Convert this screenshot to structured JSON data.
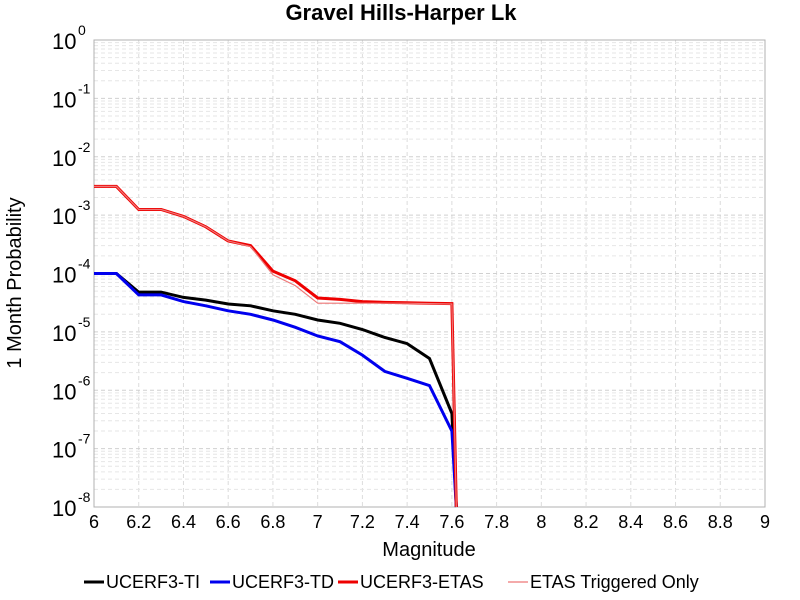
{
  "chart_data": {
    "type": "line",
    "title": "Gravel Hills-Harper Lk",
    "xlabel": "Magnitude",
    "ylabel": "1 Month Probability",
    "xlim": [
      6,
      9
    ],
    "ylim": [
      1e-08,
      1
    ],
    "yscale": "log",
    "grid": true,
    "legend_position": "bottom",
    "x_ticks": [
      "6",
      "6.2",
      "6.4",
      "6.6",
      "6.8",
      "7",
      "7.2",
      "7.4",
      "7.6",
      "7.8",
      "8",
      "8.2",
      "8.4",
      "8.6",
      "8.8",
      "9"
    ],
    "y_ticks": [
      {
        "base": "10",
        "exp": "0"
      },
      {
        "base": "10",
        "exp": "-1"
      },
      {
        "base": "10",
        "exp": "-2"
      },
      {
        "base": "10",
        "exp": "-3"
      },
      {
        "base": "10",
        "exp": "-4"
      },
      {
        "base": "10",
        "exp": "-5"
      },
      {
        "base": "10",
        "exp": "-6"
      },
      {
        "base": "10",
        "exp": "-7"
      },
      {
        "base": "10",
        "exp": "-8"
      }
    ],
    "series": [
      {
        "name": "UCERF3-TI",
        "color": "#000000",
        "width": 3,
        "x": [
          6.0,
          6.1,
          6.2,
          6.3,
          6.4,
          6.5,
          6.6,
          6.7,
          6.8,
          6.9,
          7.0,
          7.1,
          7.2,
          7.3,
          7.4,
          7.5,
          7.6,
          7.62
        ],
        "y": [
          0.0001,
          0.0001,
          4.8e-05,
          4.8e-05,
          3.9e-05,
          3.5e-05,
          3e-05,
          2.8e-05,
          2.3e-05,
          2e-05,
          1.6e-05,
          1.4e-05,
          1.1e-05,
          8e-06,
          6.3e-06,
          3.5e-06,
          4e-07,
          1e-08
        ]
      },
      {
        "name": "UCERF3-TD",
        "color": "#0000ee",
        "width": 3,
        "x": [
          6.0,
          6.1,
          6.2,
          6.3,
          6.4,
          6.5,
          6.6,
          6.7,
          6.8,
          6.9,
          7.0,
          7.1,
          7.2,
          7.3,
          7.4,
          7.5,
          7.6,
          7.62
        ],
        "y": [
          0.0001,
          0.0001,
          4.3e-05,
          4.3e-05,
          3.3e-05,
          2.8e-05,
          2.3e-05,
          2e-05,
          1.6e-05,
          1.2e-05,
          8.5e-06,
          6.8e-06,
          4e-06,
          2.1e-06,
          1.6e-06,
          1.2e-06,
          2e-07,
          1e-08
        ]
      },
      {
        "name": "UCERF3-ETAS",
        "color": "#ee0000",
        "width": 3,
        "x": [
          6.0,
          6.1,
          6.2,
          6.3,
          6.4,
          6.5,
          6.6,
          6.7,
          6.8,
          6.9,
          7.0,
          7.1,
          7.2,
          7.3,
          7.4,
          7.5,
          7.6,
          7.62
        ],
        "y": [
          0.0031,
          0.0031,
          0.00125,
          0.00125,
          0.00095,
          0.00063,
          0.00036,
          0.0003,
          0.00011,
          7.5e-05,
          3.8e-05,
          3.6e-05,
          3.3e-05,
          3.2e-05,
          3.15e-05,
          3.1e-05,
          3.05e-05,
          1e-08
        ]
      },
      {
        "name": "ETAS Triggered Only",
        "color": "#ee7777",
        "width": 1.2,
        "x": [
          6.0,
          6.1,
          6.2,
          6.3,
          6.4,
          6.5,
          6.6,
          6.7,
          6.8,
          6.9,
          7.0,
          7.1,
          7.2,
          7.3,
          7.4,
          7.5,
          7.6,
          7.62
        ],
        "y": [
          0.0031,
          0.0031,
          0.00125,
          0.00125,
          0.00095,
          0.00063,
          0.00036,
          0.00029,
          9.5e-05,
          6.2e-05,
          3.1e-05,
          3.1e-05,
          3.1e-05,
          3.1e-05,
          3.1e-05,
          3.05e-05,
          3e-05,
          1e-08
        ]
      }
    ]
  }
}
